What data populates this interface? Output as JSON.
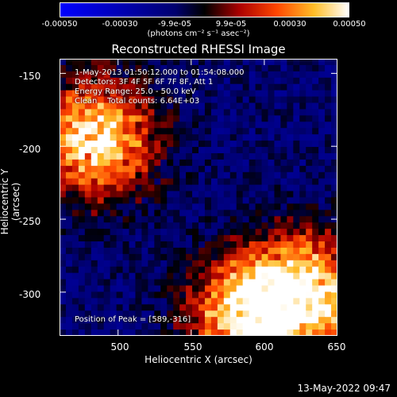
{
  "chart_data": {
    "type": "heatmap",
    "title": "Reconstructed RHESSI Image",
    "xlabel": "Heliocentric X (arcsec)",
    "ylabel": "Heliocentric Y (arcsec)",
    "xlim": [
      460,
      650
    ],
    "ylim": [
      -330,
      -140
    ],
    "x_ticks": [
      500,
      550,
      600,
      650
    ],
    "y_ticks": [
      -150,
      -200,
      -250,
      -300
    ],
    "colorbar": {
      "ticks": [
        "-0.00050",
        "-0.00030",
        "-9.9e-05",
        "9.9e-05",
        "0.00030",
        "0.00050"
      ],
      "tick_values": [
        -0.0005,
        -0.0003,
        -9.9e-05,
        9.9e-05,
        0.0003,
        0.0005
      ],
      "range": [
        -0.0005,
        0.0005
      ],
      "units": "(photons cm⁻² s⁻¹ asec⁻²)"
    },
    "annotations": {
      "time_range": "1-May-2013 01:50:12.000 to 01:54:08.000",
      "detectors": "Detectors: 3F 4F 5F 6F 7F 8F, Att 1",
      "energy_range": "Energy Range: 25.0 - 50.0 keV",
      "clean": "Clean    Total counts: 6.64E+03",
      "peak": "Position of Peak = [589,-316]"
    },
    "bright_regions": [
      {
        "x": 485,
        "y": -195,
        "value": 0.0005
      },
      {
        "x": 630,
        "y": -300,
        "value": 0.00045
      },
      {
        "x": 589,
        "y": -316,
        "value": 0.0005
      }
    ]
  },
  "timestamp": "13-May-2022 09:47"
}
